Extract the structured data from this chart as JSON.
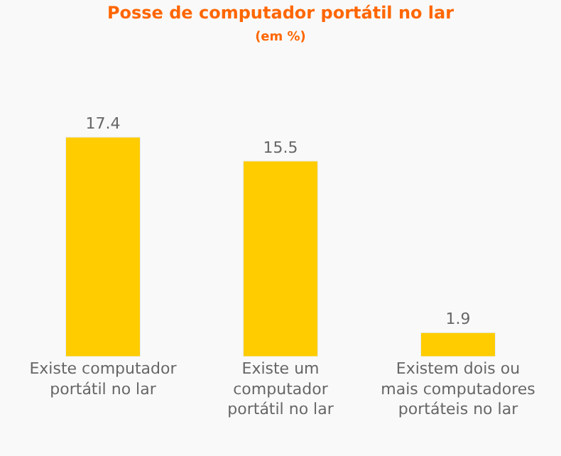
{
  "chart_data": {
    "type": "bar",
    "title": "Posse de computador portátil no lar",
    "subtitle": "(em %)",
    "categories": [
      "Existe computador portátil no lar",
      "Existe um computador portátil no lar",
      "Existem dois ou mais computadores portáteis no lar"
    ],
    "values": [
      17.4,
      15.5,
      1.9
    ],
    "color": "#ffcc00",
    "data_labels": true
  }
}
